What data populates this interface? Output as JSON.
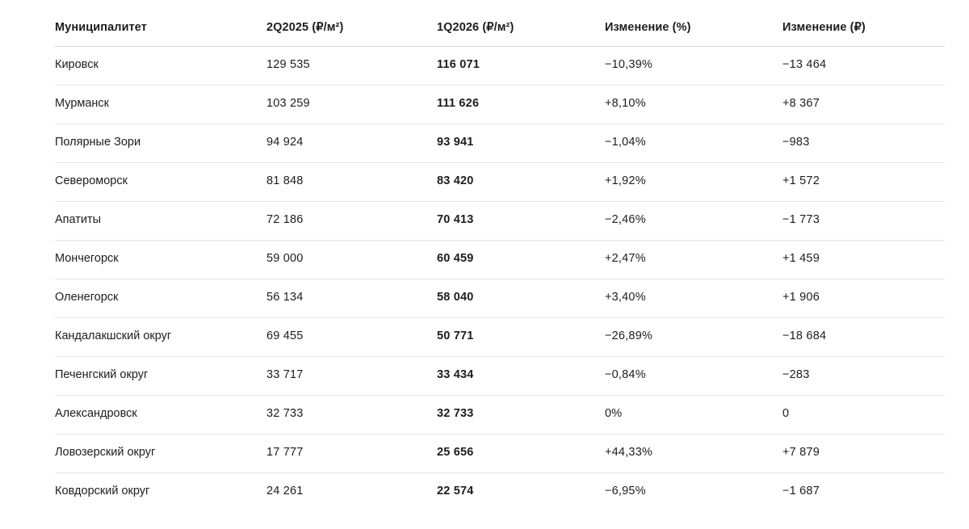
{
  "table": {
    "headers": [
      "Муниципалитет",
      "2Q2025 (₽/м²)",
      "1Q2026 (₽/м²)",
      "Изменение (%)",
      "Изменение (₽)"
    ],
    "rows": [
      [
        "Кировск",
        "129 535",
        "116 071",
        "−10,39%",
        "−13 464"
      ],
      [
        "Мурманск",
        "103 259",
        "111 626",
        "+8,10%",
        "+8 367"
      ],
      [
        "Полярные Зори",
        "94 924",
        "93 941",
        "−1,04%",
        "−983"
      ],
      [
        "Североморск",
        "81 848",
        "83 420",
        "+1,92%",
        "+1 572"
      ],
      [
        "Апатиты",
        "72 186",
        "70 413",
        "−2,46%",
        "−1 773"
      ],
      [
        "Мончегорск",
        "59 000",
        "60 459",
        "+2,47%",
        "+1 459"
      ],
      [
        "Оленегорск",
        "56 134",
        "58 040",
        "+3,40%",
        "+1 906"
      ],
      [
        "Кандалакшский округ",
        "69 455",
        "50 771",
        "−26,89%",
        "−18 684"
      ],
      [
        "Печенгский округ",
        "33 717",
        "33 434",
        "−0,84%",
        "−283"
      ],
      [
        "Александровск",
        "32 733",
        "32 733",
        "0%",
        "0"
      ],
      [
        "Ловозерский округ",
        "17 777",
        "25 656",
        "+44,33%",
        "+7 879"
      ],
      [
        "Ковдорский округ",
        "24 261",
        "22 574",
        "−6,95%",
        "−1 687"
      ]
    ]
  }
}
